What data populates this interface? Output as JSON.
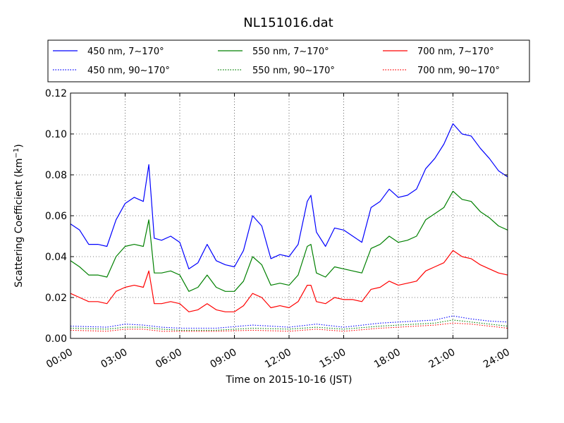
{
  "chart_data": {
    "type": "line",
    "title": "NL151016.dat",
    "xlabel": "Time on 2015-10-16 (JST)",
    "ylabel_main": "Scattering Coefficient (km",
    "ylabel_sup": "−1",
    "ylabel_end": ")",
    "xlim": [
      0,
      24
    ],
    "ylim": [
      0,
      0.12
    ],
    "grid": true,
    "legend_position": "top",
    "x_ticks": [
      {
        "value": 0,
        "label": "00:00"
      },
      {
        "value": 3,
        "label": "03:00"
      },
      {
        "value": 6,
        "label": "06:00"
      },
      {
        "value": 9,
        "label": "09:00"
      },
      {
        "value": 12,
        "label": "12:00"
      },
      {
        "value": 15,
        "label": "15:00"
      },
      {
        "value": 18,
        "label": "18:00"
      },
      {
        "value": 21,
        "label": "21:00"
      },
      {
        "value": 24,
        "label": "24:00"
      }
    ],
    "y_ticks": [
      {
        "value": 0.0,
        "label": "0.00"
      },
      {
        "value": 0.02,
        "label": "0.02"
      },
      {
        "value": 0.04,
        "label": "0.04"
      },
      {
        "value": 0.06,
        "label": "0.06"
      },
      {
        "value": 0.08,
        "label": "0.08"
      },
      {
        "value": 0.1,
        "label": "0.10"
      },
      {
        "value": 0.12,
        "label": "0.12"
      }
    ],
    "series": [
      {
        "name": "450 nm, 7∼170°",
        "color": "#0000ff",
        "style": "solid",
        "x": [
          0,
          0.5,
          1,
          1.5,
          2,
          2.5,
          3,
          3.5,
          4,
          4.3,
          4.6,
          5,
          5.5,
          6,
          6.5,
          7,
          7.5,
          8,
          8.5,
          9,
          9.5,
          10,
          10.5,
          11,
          11.5,
          12,
          12.5,
          13,
          13.2,
          13.5,
          14,
          14.5,
          15,
          15.5,
          16,
          16.5,
          17,
          17.5,
          18,
          18.5,
          19,
          19.5,
          20,
          20.5,
          21,
          21.5,
          22,
          22.5,
          23,
          23.5,
          24
        ],
        "y": [
          0.056,
          0.053,
          0.046,
          0.046,
          0.045,
          0.058,
          0.066,
          0.069,
          0.067,
          0.085,
          0.049,
          0.048,
          0.05,
          0.047,
          0.034,
          0.037,
          0.046,
          0.038,
          0.036,
          0.035,
          0.043,
          0.06,
          0.055,
          0.039,
          0.041,
          0.04,
          0.046,
          0.067,
          0.07,
          0.052,
          0.045,
          0.054,
          0.053,
          0.05,
          0.047,
          0.064,
          0.067,
          0.073,
          0.069,
          0.07,
          0.073,
          0.083,
          0.088,
          0.095,
          0.105,
          0.1,
          0.099,
          0.093,
          0.088,
          0.082,
          0.079
        ]
      },
      {
        "name": "550 nm, 7∼170°",
        "color": "#008000",
        "style": "solid",
        "x": [
          0,
          0.5,
          1,
          1.5,
          2,
          2.5,
          3,
          3.5,
          4,
          4.3,
          4.6,
          5,
          5.5,
          6,
          6.5,
          7,
          7.5,
          8,
          8.5,
          9,
          9.5,
          10,
          10.5,
          11,
          11.5,
          12,
          12.5,
          13,
          13.2,
          13.5,
          14,
          14.5,
          15,
          15.5,
          16,
          16.5,
          17,
          17.5,
          18,
          18.5,
          19,
          19.5,
          20,
          20.5,
          21,
          21.5,
          22,
          22.5,
          23,
          23.5,
          24
        ],
        "y": [
          0.038,
          0.035,
          0.031,
          0.031,
          0.03,
          0.04,
          0.045,
          0.046,
          0.045,
          0.058,
          0.032,
          0.032,
          0.033,
          0.031,
          0.023,
          0.025,
          0.031,
          0.025,
          0.023,
          0.023,
          0.028,
          0.04,
          0.036,
          0.026,
          0.027,
          0.026,
          0.031,
          0.045,
          0.046,
          0.032,
          0.03,
          0.035,
          0.034,
          0.033,
          0.032,
          0.044,
          0.046,
          0.05,
          0.047,
          0.048,
          0.05,
          0.058,
          0.061,
          0.064,
          0.072,
          0.068,
          0.067,
          0.062,
          0.059,
          0.055,
          0.053
        ]
      },
      {
        "name": "700 nm, 7∼170°",
        "color": "#ff0000",
        "style": "solid",
        "x": [
          0,
          0.5,
          1,
          1.5,
          2,
          2.5,
          3,
          3.5,
          4,
          4.3,
          4.6,
          5,
          5.5,
          6,
          6.5,
          7,
          7.5,
          8,
          8.5,
          9,
          9.5,
          10,
          10.5,
          11,
          11.5,
          12,
          12.5,
          13,
          13.2,
          13.5,
          14,
          14.5,
          15,
          15.5,
          16,
          16.5,
          17,
          17.5,
          18,
          18.5,
          19,
          19.5,
          20,
          20.5,
          21,
          21.5,
          22,
          22.5,
          23,
          23.5,
          24
        ],
        "y": [
          0.022,
          0.02,
          0.018,
          0.018,
          0.017,
          0.023,
          0.025,
          0.026,
          0.025,
          0.033,
          0.017,
          0.017,
          0.018,
          0.017,
          0.013,
          0.014,
          0.017,
          0.014,
          0.013,
          0.013,
          0.016,
          0.022,
          0.02,
          0.015,
          0.016,
          0.015,
          0.018,
          0.026,
          0.026,
          0.018,
          0.017,
          0.02,
          0.019,
          0.019,
          0.018,
          0.024,
          0.025,
          0.028,
          0.026,
          0.027,
          0.028,
          0.033,
          0.035,
          0.037,
          0.043,
          0.04,
          0.039,
          0.036,
          0.034,
          0.032,
          0.031
        ]
      },
      {
        "name": "450 nm, 90∼170°",
        "color": "#0000ff",
        "style": "dotted",
        "x": [
          0,
          2,
          3,
          4,
          5,
          6,
          8,
          10,
          12,
          13.5,
          15,
          17,
          18,
          19,
          20,
          21,
          22,
          23,
          24
        ],
        "y": [
          0.006,
          0.0055,
          0.007,
          0.0065,
          0.0055,
          0.005,
          0.005,
          0.0065,
          0.0055,
          0.007,
          0.0055,
          0.0075,
          0.008,
          0.0085,
          0.009,
          0.011,
          0.0095,
          0.0085,
          0.008
        ]
      },
      {
        "name": "550 nm, 90∼170°",
        "color": "#008000",
        "style": "dotted",
        "x": [
          0,
          2,
          3,
          4,
          5,
          6,
          8,
          10,
          12,
          13.5,
          15,
          17,
          18,
          19,
          20,
          21,
          22,
          23,
          24
        ],
        "y": [
          0.005,
          0.0045,
          0.0055,
          0.0055,
          0.0045,
          0.004,
          0.004,
          0.005,
          0.0045,
          0.0055,
          0.0045,
          0.006,
          0.0065,
          0.007,
          0.0075,
          0.009,
          0.008,
          0.007,
          0.006
        ]
      },
      {
        "name": "700 nm, 90∼170°",
        "color": "#ff0000",
        "style": "dotted",
        "x": [
          0,
          2,
          3,
          4,
          5,
          6,
          8,
          10,
          12,
          13.5,
          15,
          17,
          18,
          19,
          20,
          21,
          22,
          23,
          24
        ],
        "y": [
          0.004,
          0.0035,
          0.0045,
          0.0045,
          0.0035,
          0.0035,
          0.0035,
          0.004,
          0.0035,
          0.0045,
          0.0035,
          0.005,
          0.0055,
          0.006,
          0.0065,
          0.0075,
          0.007,
          0.006,
          0.005
        ]
      }
    ]
  }
}
